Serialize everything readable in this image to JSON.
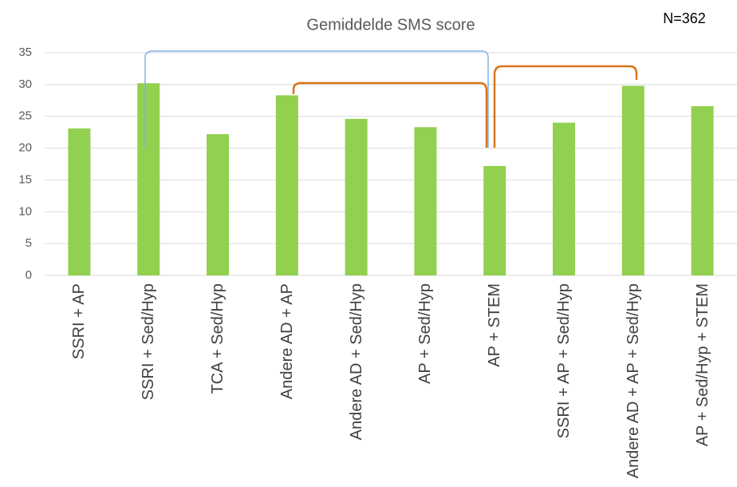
{
  "chart_data": {
    "type": "bar",
    "title": "Gemiddelde SMS score",
    "annotation": "N=362",
    "categories": [
      "SSRI + AP",
      "SSRI + Sed/Hyp",
      "TCA + Sed/Hyp",
      "Andere AD + AP",
      "Andere AD + Sed/Hyp",
      "AP + Sed/Hyp",
      "AP + STEM",
      "SSRI + AP + Sed/Hyp",
      "Andere AD  + AP + Sed/Hyp",
      "AP + Sed/Hyp + STEM"
    ],
    "values": [
      23.1,
      30.2,
      22.2,
      28.3,
      24.6,
      23.3,
      17.2,
      24.0,
      29.8,
      26.6
    ],
    "color": "#92d050",
    "ylim": [
      0,
      35
    ],
    "yticks": [
      0,
      5,
      10,
      15,
      20,
      25,
      30,
      35
    ],
    "grid": true
  }
}
